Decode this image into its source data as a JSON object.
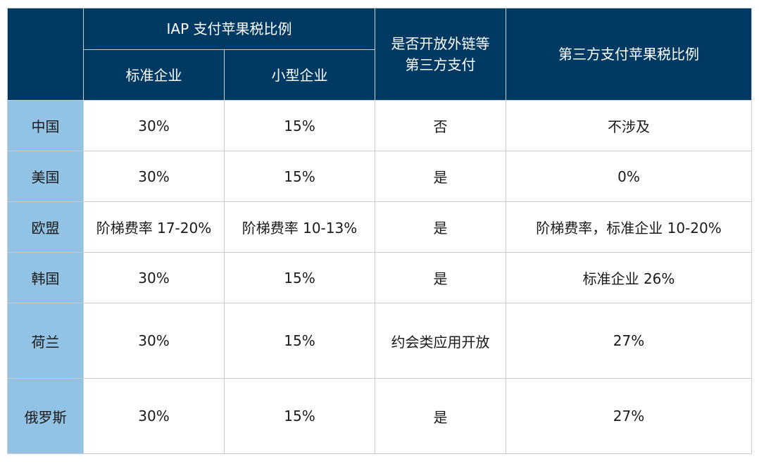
{
  "header": {
    "iap_group": "IAP 支付苹果税比例",
    "standard": "标准企业",
    "small": "小型企业",
    "external_link_line1": "是否开放外链等",
    "external_link_line2": "第三方支付",
    "third_party_rate": "第三方支付苹果税比例"
  },
  "rows": [
    {
      "country": "中国",
      "standard": "30%",
      "small": "15%",
      "external": "否",
      "third_party": "不涉及"
    },
    {
      "country": "美国",
      "standard": "30%",
      "small": "15%",
      "external": "是",
      "third_party": "0%"
    },
    {
      "country": "欧盟",
      "standard": "阶梯费率 17-20%",
      "small": "阶梯费率 10-13%",
      "external": "是",
      "third_party": "阶梯费率，标准企业 10-20%"
    },
    {
      "country": "韩国",
      "standard": "30%",
      "small": "15%",
      "external": "是",
      "third_party": "标准企业 26%"
    },
    {
      "country": "荷兰",
      "standard": "30%",
      "small": "15%",
      "external": "约会类应用开放",
      "third_party": "27%"
    },
    {
      "country": "俄罗斯",
      "standard": "30%",
      "small": "15%",
      "external": "是",
      "third_party": "27%"
    }
  ],
  "colors": {
    "header_bg": "#003a63",
    "country_bg": "#92c3e4",
    "border": "#c9cdd2"
  }
}
